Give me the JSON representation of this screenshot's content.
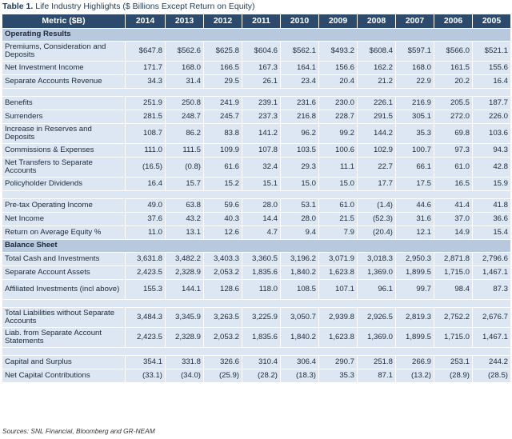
{
  "caption": {
    "label": "Table 1.",
    "text": " Life Industry Highlights ($ Billions Except Return on Equity)"
  },
  "columns": {
    "metric": "Metric ($B)",
    "years": [
      "2014",
      "2013",
      "2012",
      "2011",
      "2010",
      "2009",
      "2008",
      "2007",
      "2006",
      "2005"
    ]
  },
  "rows": [
    {
      "kind": "section",
      "label": "Operating Results"
    },
    {
      "kind": "data",
      "tall": true,
      "label": "Premiums, Consideration and Deposits",
      "values": [
        "$647.8",
        "$562.6",
        "$625.8",
        "$604.6",
        "$562.1",
        "$493.2",
        "$608.4",
        "$597.1",
        "$566.0",
        "$521.1"
      ]
    },
    {
      "kind": "data",
      "label": "Net Investment Income",
      "values": [
        "171.7",
        "168.0",
        "166.5",
        "167.3",
        "164.1",
        "156.6",
        "162.2",
        "168.0",
        "161.5",
        "155.6"
      ]
    },
    {
      "kind": "data",
      "label": "Separate Accounts Revenue",
      "values": [
        "34.3",
        "31.4",
        "29.5",
        "26.1",
        "23.4",
        "20.4",
        "21.2",
        "22.9",
        "20.2",
        "16.4"
      ]
    },
    {
      "kind": "spacer"
    },
    {
      "kind": "data",
      "label": "Benefits",
      "values": [
        "251.9",
        "250.8",
        "241.9",
        "239.1",
        "231.6",
        "230.0",
        "226.1",
        "216.9",
        "205.5",
        "187.7"
      ]
    },
    {
      "kind": "data",
      "label": "Surrenders",
      "values": [
        "281.5",
        "248.7",
        "245.7",
        "237.3",
        "216.8",
        "228.7",
        "291.5",
        "305.1",
        "272.0",
        "226.0"
      ]
    },
    {
      "kind": "data",
      "tall": true,
      "label": "Increase in Reserves and Deposits",
      "values": [
        "108.7",
        "86.2",
        "83.8",
        "141.2",
        "96.2",
        "99.2",
        "144.2",
        "35.3",
        "69.8",
        "103.6"
      ]
    },
    {
      "kind": "data",
      "label": "Commissions & Expenses",
      "values": [
        "111.0",
        "111.5",
        "109.9",
        "107.8",
        "103.5",
        "100.6",
        "102.9",
        "100.7",
        "97.3",
        "94.3"
      ]
    },
    {
      "kind": "data",
      "tall": true,
      "label": "Net Transfers to Separate Accounts",
      "values": [
        "(16.5)",
        "(0.8)",
        "61.6",
        "32.4",
        "29.3",
        "11.1",
        "22.7",
        "66.1",
        "61.0",
        "42.8"
      ]
    },
    {
      "kind": "data",
      "label": "Policyholder Dividends",
      "values": [
        "16.4",
        "15.7",
        "15.2",
        "15.1",
        "15.0",
        "15.0",
        "17.7",
        "17.5",
        "16.5",
        "15.9"
      ]
    },
    {
      "kind": "spacer"
    },
    {
      "kind": "data",
      "label": "Pre-tax Operating Income",
      "values": [
        "49.0",
        "63.8",
        "59.6",
        "28.0",
        "53.1",
        "61.0",
        "(1.4)",
        "44.6",
        "41.4",
        "41.8"
      ]
    },
    {
      "kind": "data",
      "label": "Net Income",
      "values": [
        "37.6",
        "43.2",
        "40.3",
        "14.4",
        "28.0",
        "21.5",
        "(52.3)",
        "31.6",
        "37.0",
        "36.6"
      ]
    },
    {
      "kind": "data",
      "label": "Return on Average Equity %",
      "values": [
        "11.0",
        "13.1",
        "12.6",
        "4.7",
        "9.4",
        "7.9",
        "(20.4)",
        "12.1",
        "14.9",
        "15.4"
      ]
    },
    {
      "kind": "section",
      "label": "Balance Sheet"
    },
    {
      "kind": "data",
      "label": "Total Cash and Investments",
      "values": [
        "3,631.8",
        "3,482.2",
        "3,403.3",
        "3,360.5",
        "3,196.2",
        "3,071.9",
        "3,018.3",
        "2,950.3",
        "2,871.8",
        "2,796.6"
      ]
    },
    {
      "kind": "data",
      "label": "Separate Account Assets",
      "values": [
        "2,423.5",
        "2,328.9",
        "2,053.2",
        "1,835.6",
        "1,840.2",
        "1,623.8",
        "1,369.0",
        "1,899.5",
        "1,715.0",
        "1,467.1"
      ]
    },
    {
      "kind": "data",
      "tall": true,
      "label": "Affiliated Investments (incl above)",
      "values": [
        "155.3",
        "144.1",
        "128.6",
        "118.0",
        "108.5",
        "107.1",
        "96.1",
        "99.7",
        "98.4",
        "87.3"
      ]
    },
    {
      "kind": "spacer"
    },
    {
      "kind": "data",
      "tall": true,
      "label": "Total Liabilities without Separate Accounts",
      "values": [
        "3,484.3",
        "3,345.9",
        "3,263.5",
        "3,225.9",
        "3,050.7",
        "2,939.8",
        "2,926.5",
        "2,819.3",
        "2,752.2",
        "2,676.7"
      ]
    },
    {
      "kind": "data",
      "tall": true,
      "label": "Liab. from Separate Account Statements",
      "values": [
        "2,423.5",
        "2,328.9",
        "2,053.2",
        "1,835.6",
        "1,840.2",
        "1,623.8",
        "1,369.0",
        "1,899.5",
        "1,715.0",
        "1,467.1"
      ]
    },
    {
      "kind": "spacer"
    },
    {
      "kind": "data",
      "label": "Capital and Surplus",
      "values": [
        "354.1",
        "331.8",
        "326.6",
        "310.4",
        "306.4",
        "290.7",
        "251.8",
        "266.9",
        "253.1",
        "244.2"
      ]
    },
    {
      "kind": "data",
      "label": "Net Capital Contributions",
      "values": [
        "(33.1)",
        "(34.0)",
        "(25.9)",
        "(28.2)",
        "(18.3)",
        "35.3",
        "87.1",
        "(13.2)",
        "(28.9)",
        "(28.5)"
      ]
    }
  ],
  "source": "Sources: SNL Financial, Bloomberg and GR-NEAM",
  "colors": {
    "header_bg": "#2c4a6b",
    "section_bg": "#b8c9dd",
    "row_bg": "#dde7f3",
    "caption_text": "#1f3b57"
  }
}
